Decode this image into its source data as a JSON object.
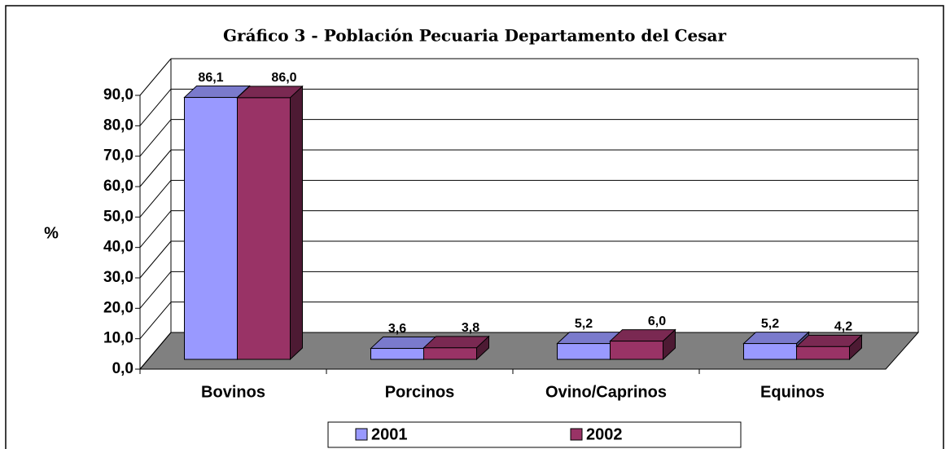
{
  "chart_data": {
    "type": "bar3d",
    "title": "Gráfico 3 - Población Pecuaria Departamento del Cesar",
    "y_label": "%",
    "categories": [
      "Bovinos",
      "Porcinos",
      "Ovino/Caprinos",
      "Equinos"
    ],
    "series": [
      {
        "name": "2001",
        "color": "#9999ff",
        "values": [
          86.1,
          3.6,
          5.2,
          5.2
        ],
        "value_labels": [
          "86,1",
          "3,6",
          "5,2",
          "5,2"
        ]
      },
      {
        "name": "2002",
        "color": "#993366",
        "values": [
          86.0,
          3.8,
          6.0,
          4.2
        ],
        "value_labels": [
          "86,0",
          "3,8",
          "6,0",
          "4,2"
        ]
      }
    ],
    "ylim": [
      0,
      90
    ],
    "yticks": [
      {
        "value": 0,
        "label": "0,0"
      },
      {
        "value": 10,
        "label": "10,0"
      },
      {
        "value": 20,
        "label": "20,0"
      },
      {
        "value": 30,
        "label": "30,0"
      },
      {
        "value": 40,
        "label": "40,0"
      },
      {
        "value": 50,
        "label": "50,0"
      },
      {
        "value": 60,
        "label": "60,0"
      },
      {
        "value": 70,
        "label": "70,0"
      },
      {
        "value": 80,
        "label": "80,0"
      },
      {
        "value": 90,
        "label": "90,0"
      }
    ],
    "grid": true
  }
}
